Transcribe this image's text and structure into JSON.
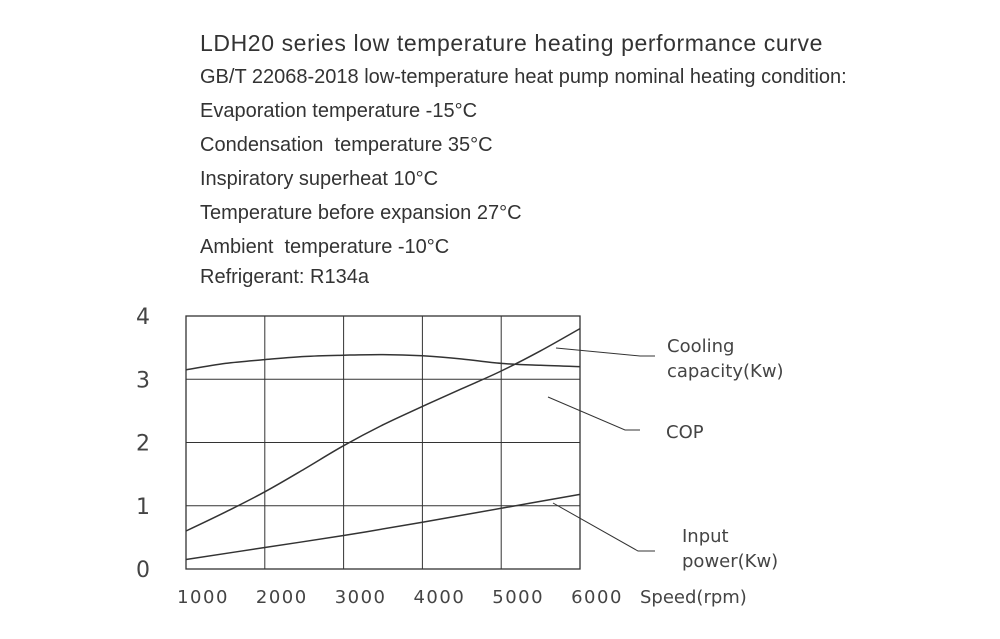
{
  "header": {
    "lines": [
      "LDH20 series low temperature heating performance curve",
      "GB/T 22068-2018 low-temperature heat pump nominal heating condition:",
      "Evaporation temperature -15°C",
      "Condensation  temperature 35°C",
      "Inspiratory superheat 10°C",
      "Temperature before expansion 27°C",
      "Ambient  temperature -10°C",
      "Refrigerant: R134a"
    ]
  },
  "colors": {
    "line": "#333333",
    "grid": "#333333",
    "text": "#444444"
  },
  "chart_data": {
    "type": "line",
    "xlabel": "Speed(rpm)",
    "ylabel": "",
    "xlim": [
      1000,
      6000
    ],
    "ylim": [
      0,
      4
    ],
    "x_ticks": [
      1000,
      2000,
      3000,
      4000,
      5000,
      6000
    ],
    "y_ticks": [
      0,
      1,
      2,
      3,
      4
    ],
    "grid": true,
    "series": [
      {
        "name": "Cooling capacity(Kw)",
        "x": [
          1000,
          1500,
          2000,
          2500,
          3000,
          3500,
          4000,
          4500,
          5000,
          5500,
          6000
        ],
        "y": [
          0.6,
          0.9,
          1.22,
          1.58,
          1.95,
          2.28,
          2.57,
          2.85,
          3.13,
          3.45,
          3.8
        ]
      },
      {
        "name": "COP",
        "x": [
          1000,
          1500,
          2000,
          2500,
          3000,
          3500,
          4000,
          4500,
          5000,
          5500,
          6000
        ],
        "y": [
          3.15,
          3.25,
          3.31,
          3.36,
          3.38,
          3.39,
          3.37,
          3.32,
          3.25,
          3.22,
          3.2
        ]
      },
      {
        "name": "Input power(Kw)",
        "x": [
          1000,
          2000,
          3000,
          4000,
          5000,
          6000
        ],
        "y": [
          0.15,
          0.34,
          0.53,
          0.74,
          0.96,
          1.18
        ]
      }
    ],
    "legend": [
      {
        "lines": [
          "Cooling",
          "capacity(Kw)"
        ],
        "series": 0
      },
      {
        "lines": [
          "COP"
        ],
        "series": 1
      },
      {
        "lines": [
          "Input",
          "power(Kw)"
        ],
        "series": 2
      }
    ]
  }
}
